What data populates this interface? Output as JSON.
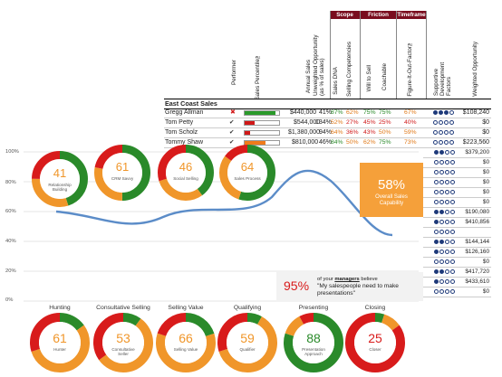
{
  "header": {
    "columns": [
      "Performer",
      "Sales Percentile™",
      "Annual Sales",
      "Unweighted Opportunity (as % of sales)",
      "Sales DNA",
      "Selling Competencies",
      "Will to Sell",
      "Coachable",
      "Figure-It-Out-Factor™",
      "Supportive Development Factors",
      "Weighted Opportunity"
    ],
    "groups": {
      "scope": "Scope",
      "friction": "Friction",
      "timeframe": "Timeframe"
    }
  },
  "section_title": "East Coast Sales",
  "reps": [
    {
      "name": "Gregg Allman",
      "annual": "$440,000",
      "opp": "41%",
      "dna": "87%",
      "sc": "62%",
      "will": "75%",
      "coach": "75%",
      "fif": "67%",
      "weighted": "$108,240"
    },
    {
      "name": "Tom Petty",
      "annual": "$544,000",
      "opp": "134%",
      "dna": "52%",
      "sc": "27%",
      "will": "45%",
      "coach": "25%",
      "fif": "40%",
      "weighted": "$0"
    },
    {
      "name": "Tom Scholz",
      "annual": "$1,380,000",
      "opp": "94%",
      "dna": "64%",
      "sc": "36%",
      "will": "43%",
      "coach": "50%",
      "fif": "59%",
      "weighted": "$0"
    },
    {
      "name": "Tommy Shaw",
      "annual": "$810,000",
      "opp": "46%",
      "dna": "84%",
      "sc": "50%",
      "will": "62%",
      "coach": "75%",
      "fif": "73%",
      "weighted": "$223,560"
    }
  ],
  "reps_progress": [
    0.9,
    0.3,
    0.15,
    0.6
  ],
  "extra_weighted": [
    "$379,200",
    "$0",
    "$0",
    "$0",
    "$0",
    "$0",
    "$190,080",
    "$410,856",
    "",
    "$144,144",
    "$126,160",
    "$0",
    "$417,720",
    "$433,610",
    "$0"
  ],
  "line_chart": {
    "yticks": [
      "100%",
      "80%",
      "60%",
      "40%",
      "20%",
      "0%"
    ]
  },
  "gauges": [
    {
      "value": "41",
      "label": "Relationship Building"
    },
    {
      "value": "61",
      "label": "CRM Savvy"
    },
    {
      "value": "46",
      "label": "Social Selling"
    },
    {
      "value": "64",
      "label": "Sales Process"
    }
  ],
  "capability": {
    "value": "58%",
    "label": "Overall Sales Capability"
  },
  "callout": {
    "percent": "95%",
    "line1_pre": "of your ",
    "line1_em": "managers",
    "line1_post": " believe",
    "quote": "\"My salespeople need to make presentations\""
  },
  "bottom_gauges": [
    {
      "title": "Hunting",
      "value": "61",
      "label": "Hunter",
      "color": "#f0962a"
    },
    {
      "title": "Consultative Selling",
      "value": "53",
      "label": "Consultative Seller",
      "color": "#f0962a"
    },
    {
      "title": "Selling Value",
      "value": "66",
      "label": "Selling Value",
      "color": "#f0962a"
    },
    {
      "title": "Qualifying",
      "value": "59",
      "label": "Qualifier",
      "color": "#f0962a"
    },
    {
      "title": "Presenting",
      "value": "88",
      "label": "Presentation Approach",
      "color": "#2a8a2a"
    },
    {
      "title": "Closing",
      "value": "25",
      "label": "Closer",
      "color": "#d81b1b"
    }
  ]
}
